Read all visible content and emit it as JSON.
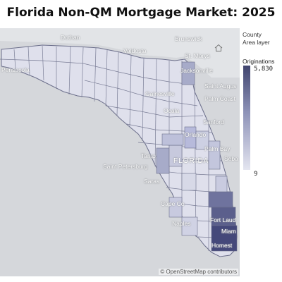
{
  "title": "Florida Non-QM Mortgage Market: 2025",
  "legend": {
    "layer_line1": "County",
    "layer_line2": "Area layer",
    "measure": "Originations",
    "max": "5,830",
    "min": "9",
    "ramp_colors": [
      "#41456f",
      "#e4e5f0"
    ]
  },
  "places": {
    "dothan": "Dothan",
    "brunswick": "Brunswick",
    "valdosta": "Valdosta",
    "st_marys": "St. Marys",
    "pensacola": "Pensacola",
    "jacksonville": "Jacksonville",
    "gainesville": "Gainesville",
    "saint_augustine": "Saint Augus",
    "palm_coast": "Palm Coast",
    "ocala": "Ocala",
    "sanford": "Sanford",
    "orlando": "Orlando",
    "tampa": "Tamp",
    "palm_bay": "Palm Bay",
    "florida": "FLORIDA",
    "saint_petersburg": "Saint Petersburg",
    "sarasota": "Saras",
    "sebastian": "Seba",
    "cape_coral": "Cape Co",
    "fort_lauderdale": "Fort Laud",
    "naples": "Naples",
    "miami": "Miam",
    "homestead": "Homest"
  },
  "attribution": "© OpenStreetMap contributors",
  "icons": {
    "home": "home-icon"
  }
}
